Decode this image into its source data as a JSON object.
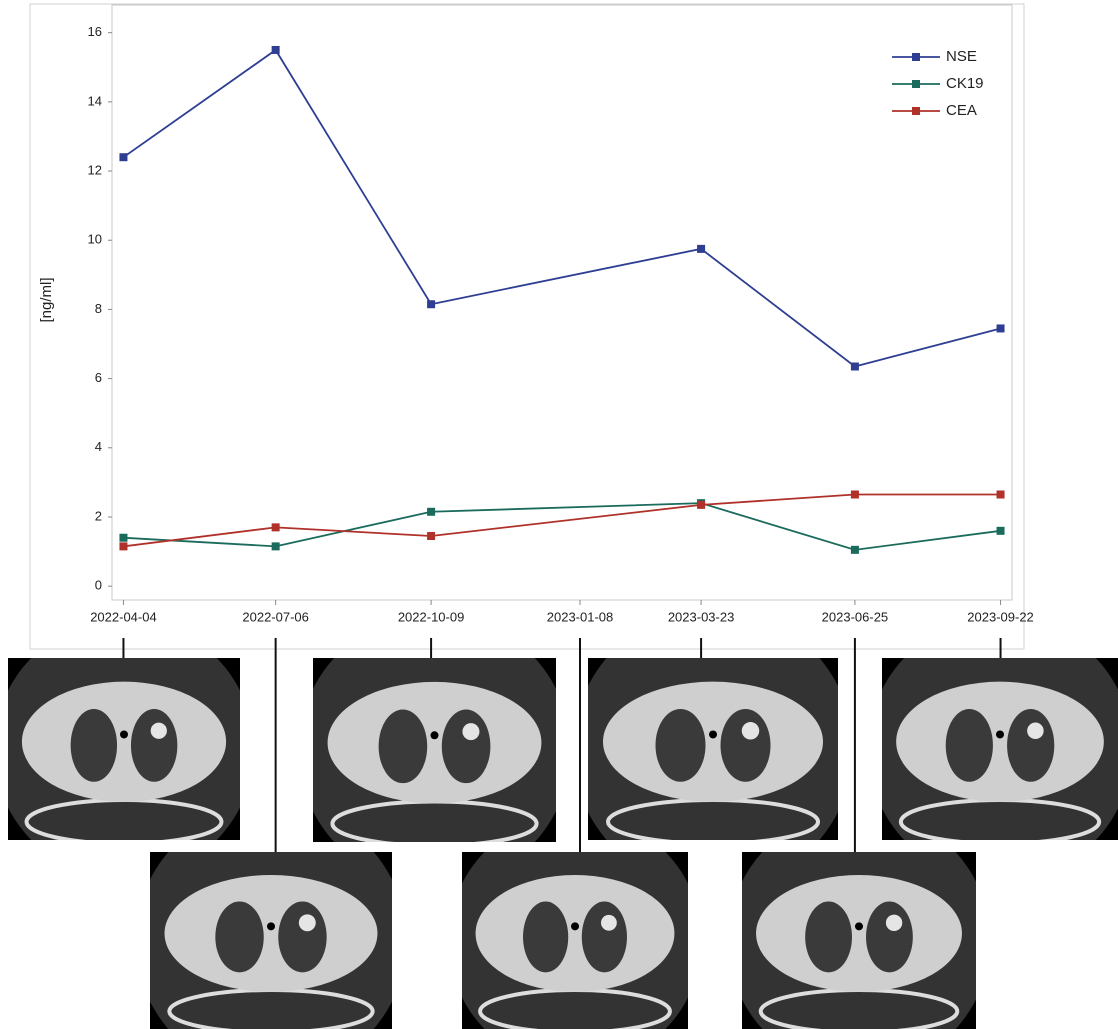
{
  "chart_data": {
    "type": "line",
    "y_label": "[ng/ml]",
    "x": [
      "2022-04-04",
      "2022-07-06",
      "2022-10-09",
      "2023-03-23",
      "2023-06-25",
      "2023-09-22"
    ],
    "series": [
      {
        "name": "NSE",
        "color": "#2e3f93",
        "values": [
          12.4,
          15.5,
          8.15,
          9.75,
          6.35,
          7.45
        ]
      },
      {
        "name": "CK19",
        "color": "#1a6b5c",
        "values": [
          1.4,
          1.15,
          2.15,
          2.4,
          1.05,
          1.6
        ]
      },
      {
        "name": "CEA",
        "color": "#b0302a",
        "values": [
          1.15,
          1.7,
          1.45,
          2.35,
          2.65,
          2.65
        ]
      }
    ],
    "xlim": [
      "2022-03-28",
      "2023-09-29"
    ],
    "xticks": [
      "2022-04-04",
      "2022-07-06",
      "2022-10-09",
      "2023-01-08",
      "2023-03-23",
      "2023-06-25",
      "2023-09-22"
    ],
    "ylim": [
      -0.4,
      16.8
    ],
    "yticks": [
      0,
      2,
      4,
      6,
      8,
      10,
      12,
      14,
      16
    ],
    "legend": "top-right",
    "grid": false
  }
}
